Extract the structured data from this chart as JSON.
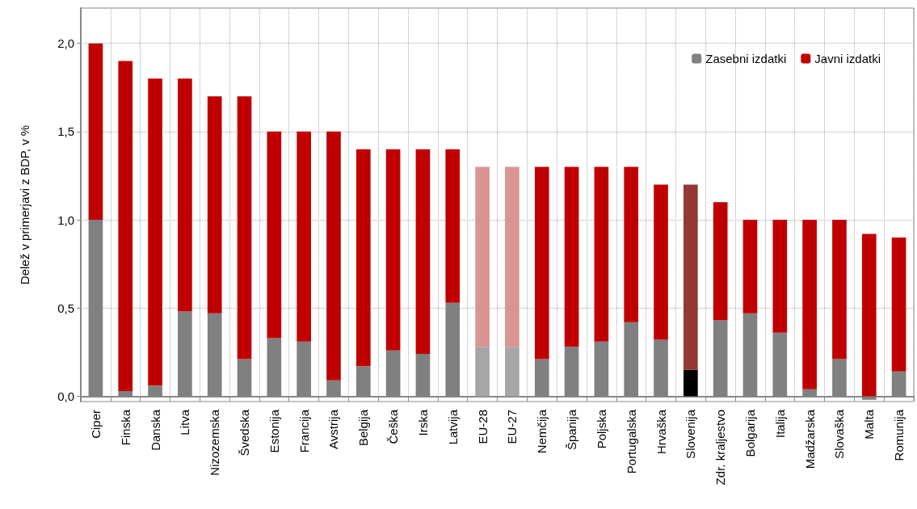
{
  "chart_data": {
    "type": "bar",
    "stacked": true,
    "ylabel": "Delež v primerjavi z BDP, v %",
    "categories": [
      "Ciper",
      "Finska",
      "Danska",
      "Litva",
      "Nizozemska",
      "Švedska",
      "Estonija",
      "Francija",
      "Avstrija",
      "Belgija",
      "Češka",
      "Irska",
      "Latvija",
      "EU-28",
      "EU-27",
      "Nemčija",
      "Španija",
      "Poljska",
      "Portugalska",
      "Hrvaška",
      "Slovenija",
      "Zdr. kraljestvo",
      "Bolgarija",
      "Italija",
      "Madžarska",
      "Slovaška",
      "Malta",
      "Romunija"
    ],
    "series": [
      {
        "name": "Zasebni izdatki",
        "color": "#808080",
        "colors": [
          "#808080",
          "#808080",
          "#808080",
          "#808080",
          "#808080",
          "#808080",
          "#808080",
          "#808080",
          "#808080",
          "#808080",
          "#808080",
          "#808080",
          "#808080",
          "#a6a6a6",
          "#a6a6a6",
          "#808080",
          "#808080",
          "#808080",
          "#808080",
          "#808080",
          "#000000",
          "#808080",
          "#808080",
          "#808080",
          "#808080",
          "#808080",
          "#808080",
          "#808080"
        ],
        "values": [
          1.0,
          0.03,
          0.06,
          0.48,
          0.47,
          0.21,
          0.33,
          0.31,
          0.09,
          0.17,
          0.26,
          0.24,
          0.53,
          0.28,
          0.28,
          0.21,
          0.28,
          0.31,
          0.42,
          0.32,
          0.15,
          0.43,
          0.47,
          0.36,
          0.04,
          0.21,
          -0.02,
          0.14
        ]
      },
      {
        "name": "Javni izdatki",
        "color": "#c00000",
        "colors": [
          "#c00000",
          "#c00000",
          "#c00000",
          "#c00000",
          "#c00000",
          "#c00000",
          "#c00000",
          "#c00000",
          "#c00000",
          "#c00000",
          "#c00000",
          "#c00000",
          "#c00000",
          "#d99594",
          "#d99594",
          "#c00000",
          "#c00000",
          "#c00000",
          "#c00000",
          "#c00000",
          "#953735",
          "#c00000",
          "#c00000",
          "#c00000",
          "#c00000",
          "#c00000",
          "#c00000",
          "#c00000"
        ],
        "values": [
          1.0,
          1.87,
          1.74,
          1.32,
          1.23,
          1.49,
          1.17,
          1.19,
          1.41,
          1.23,
          1.14,
          1.16,
          0.87,
          1.02,
          1.02,
          1.09,
          1.02,
          0.99,
          0.88,
          0.88,
          1.05,
          0.67,
          0.53,
          0.64,
          0.96,
          0.79,
          0.92,
          0.76
        ]
      }
    ],
    "ylim": [
      -0.03,
      2.2
    ],
    "yticks": [
      {
        "value": 0,
        "label": "0,0"
      },
      {
        "value": 0.5,
        "label": "0,5"
      },
      {
        "value": 1,
        "label": "1,0"
      },
      {
        "value": 1.5,
        "label": "1,5"
      },
      {
        "value": 2,
        "label": "2,0"
      }
    ],
    "grid": true,
    "legend": "top right"
  }
}
